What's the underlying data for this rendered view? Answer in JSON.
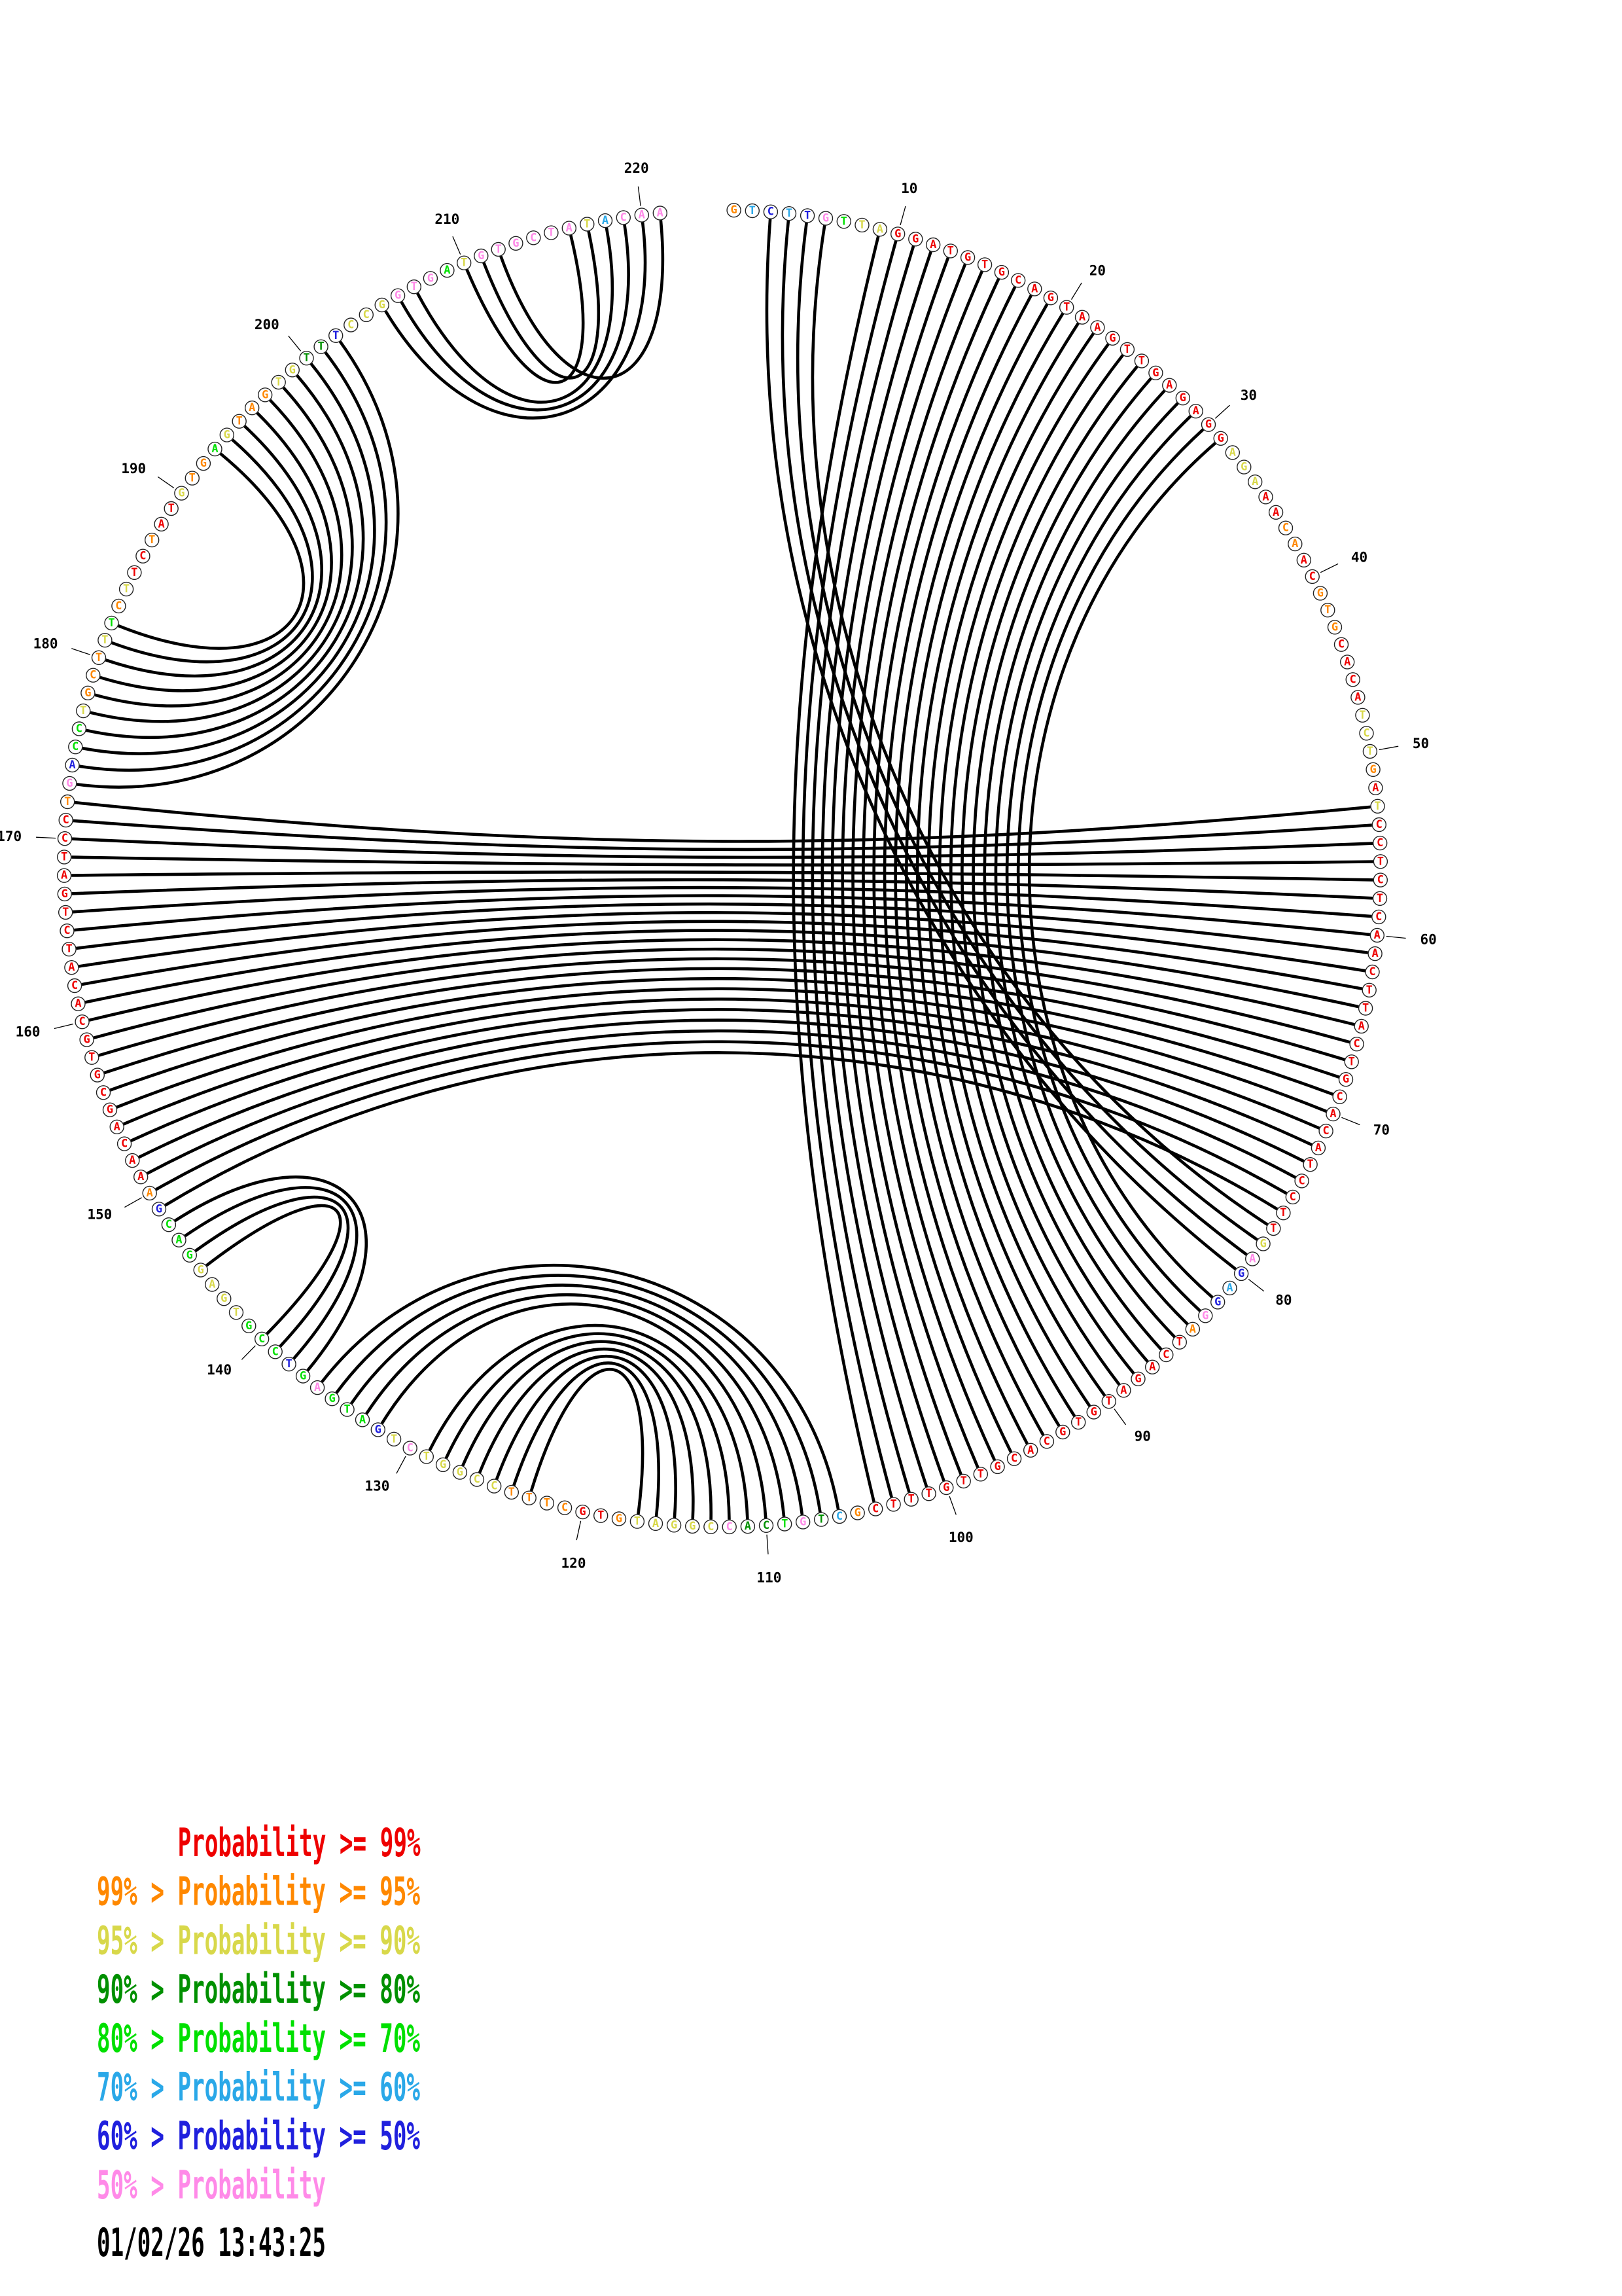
{
  "plot": {
    "type": "circle-pairing-plot",
    "description": "Circular nucleic-acid base-pairing probability plot",
    "sequence": "GTCTTGTTAGGATGTGCAGTAAGTTGAGAGGAGAAACAACGTGCACATCTGATCCTCTCAACTTACTGCACATCCTTGAGAGGATCAGATGTGCACGTTGTTTCGCTGTCACCGGATGTGCTTTCCGGTCTGATGAGTCCGTGAGGACGAAACAGCGTGCACATCTGATCCTGACCTGCTTTCTTCTATGTGAGTAGTGTTTCCGGTGATGTGCTATACAA",
    "base_color_codes": "OLBLBPGYYRRRRRRRRRRRRRRRRRRRRRRYYYRROORROOORRRRYYYORYRRRRRRRRRRRRRRRRRRRRRRRRYPBLBPORRRRRRRRRRRRRRRRRRRROLDPGDDPYYYYYORROOOOYYYYYPYBGGGPGBGGGYYYYGGGBORRRRRRRRRRRRRRRRRRRRROPBGGYOOOYGOYRRORRYOOGYOOOYYDDBYYYPPPGYPPPPPPYLPPPY",
    "palette": {
      "R": "#EE0000",
      "O": "#FF8800",
      "Y": "#D8D84A",
      "D": "#009000",
      "G": "#00E000",
      "L": "#2AA8E8",
      "B": "#2020DD",
      "P": "#FF8AE8"
    },
    "pairs": [
      [
        3,
        80
      ],
      [
        4,
        79
      ],
      [
        5,
        78
      ],
      [
        6,
        77
      ],
      [
        9,
        104
      ],
      [
        10,
        103
      ],
      [
        11,
        102
      ],
      [
        12,
        101
      ],
      [
        13,
        100
      ],
      [
        14,
        99
      ],
      [
        15,
        98
      ],
      [
        16,
        97
      ],
      [
        17,
        96
      ],
      [
        18,
        95
      ],
      [
        19,
        94
      ],
      [
        20,
        93
      ],
      [
        21,
        92
      ],
      [
        22,
        91
      ],
      [
        23,
        90
      ],
      [
        24,
        89
      ],
      [
        25,
        88
      ],
      [
        26,
        87
      ],
      [
        27,
        86
      ],
      [
        28,
        85
      ],
      [
        29,
        84
      ],
      [
        30,
        83
      ],
      [
        31,
        82
      ],
      [
        53,
        172
      ],
      [
        54,
        171
      ],
      [
        55,
        170
      ],
      [
        56,
        169
      ],
      [
        57,
        168
      ],
      [
        58,
        167
      ],
      [
        59,
        166
      ],
      [
        60,
        165
      ],
      [
        61,
        164
      ],
      [
        62,
        163
      ],
      [
        63,
        162
      ],
      [
        64,
        161
      ],
      [
        65,
        160
      ],
      [
        66,
        159
      ],
      [
        67,
        158
      ],
      [
        68,
        157
      ],
      [
        69,
        156
      ],
      [
        70,
        155
      ],
      [
        71,
        154
      ],
      [
        72,
        153
      ],
      [
        73,
        152
      ],
      [
        74,
        151
      ],
      [
        75,
        150
      ],
      [
        76,
        149
      ],
      [
        106,
        136
      ],
      [
        107,
        135
      ],
      [
        108,
        134
      ],
      [
        109,
        133
      ],
      [
        110,
        132
      ],
      [
        111,
        129
      ],
      [
        112,
        128
      ],
      [
        113,
        127
      ],
      [
        114,
        126
      ],
      [
        115,
        125
      ],
      [
        116,
        124
      ],
      [
        117,
        123
      ],
      [
        137,
        148
      ],
      [
        138,
        147
      ],
      [
        139,
        146
      ],
      [
        140,
        145
      ],
      [
        173,
        202
      ],
      [
        174,
        201
      ],
      [
        175,
        200
      ],
      [
        176,
        199
      ],
      [
        177,
        198
      ],
      [
        178,
        197
      ],
      [
        179,
        196
      ],
      [
        180,
        195
      ],
      [
        181,
        194
      ],
      [
        182,
        193
      ],
      [
        205,
        220
      ],
      [
        206,
        219
      ],
      [
        207,
        218
      ],
      [
        210,
        216
      ],
      [
        211,
        217
      ],
      [
        212,
        221
      ]
    ],
    "tick_interval": 10,
    "tick_labels": [
      "10",
      "20",
      "30",
      "40",
      "50",
      "60",
      "70",
      "80",
      "90",
      "100",
      "110",
      "120",
      "130",
      "140",
      "150",
      "160",
      "170",
      "180",
      "190",
      "200",
      "210",
      "220"
    ],
    "arc_color": "#000000"
  },
  "chart_data": {
    "type": "circle-plot",
    "title": "",
    "n_bases": 221,
    "legend_position": "bottom-left",
    "notes": "221-nt sequence arranged clockwise on a circle; black arcs join predicted base pairs; base letter color encodes probability class per legend"
  },
  "legend": {
    "lines": [
      {
        "label": "Probability >= 99%",
        "color": "R",
        "indent": 6
      },
      {
        "label": "99% > Probability >= 95%",
        "color": "O",
        "indent": 0
      },
      {
        "label": "95% > Probability >= 90%",
        "color": "Y",
        "indent": 0
      },
      {
        "label": "90% > Probability >= 80%",
        "color": "D",
        "indent": 0
      },
      {
        "label": "80% > Probability >= 70%",
        "color": "G",
        "indent": 0
      },
      {
        "label": "70% > Probability >= 60%",
        "color": "L",
        "indent": 0
      },
      {
        "label": "60% > Probability >= 50%",
        "color": "B",
        "indent": 0
      },
      {
        "label": "50% > Probability",
        "color": "P",
        "indent": 0
      }
    ]
  },
  "footer": {
    "timestamp": "01/02/26 13:43:25"
  }
}
